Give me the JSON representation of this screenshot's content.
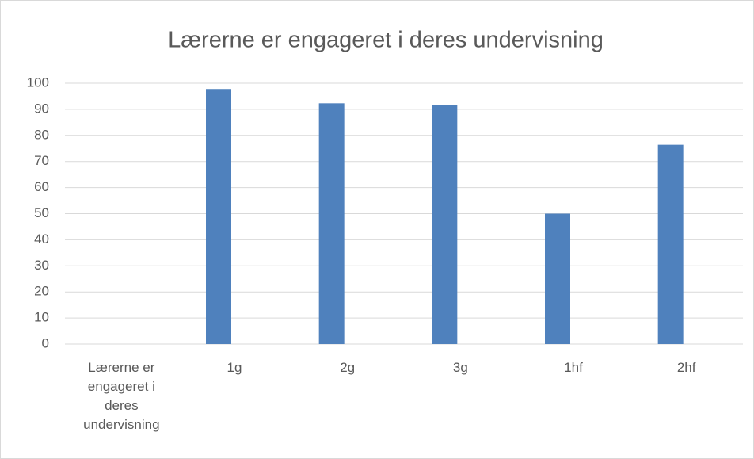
{
  "chart_data": {
    "type": "bar",
    "title": "Lærerne er engageret i deres undervisning",
    "categories": [
      "Lærerne er engageret i deres undervisning",
      "1g",
      "2g",
      "3g",
      "1hf",
      "2hf"
    ],
    "values": [
      null,
      97.8,
      92.3,
      91.6,
      50,
      76.4
    ],
    "color": "#4f81bd",
    "ylim": [
      0,
      100
    ],
    "yticks": [
      0,
      10,
      20,
      30,
      40,
      50,
      60,
      70,
      80,
      90,
      100
    ],
    "grid": true
  }
}
